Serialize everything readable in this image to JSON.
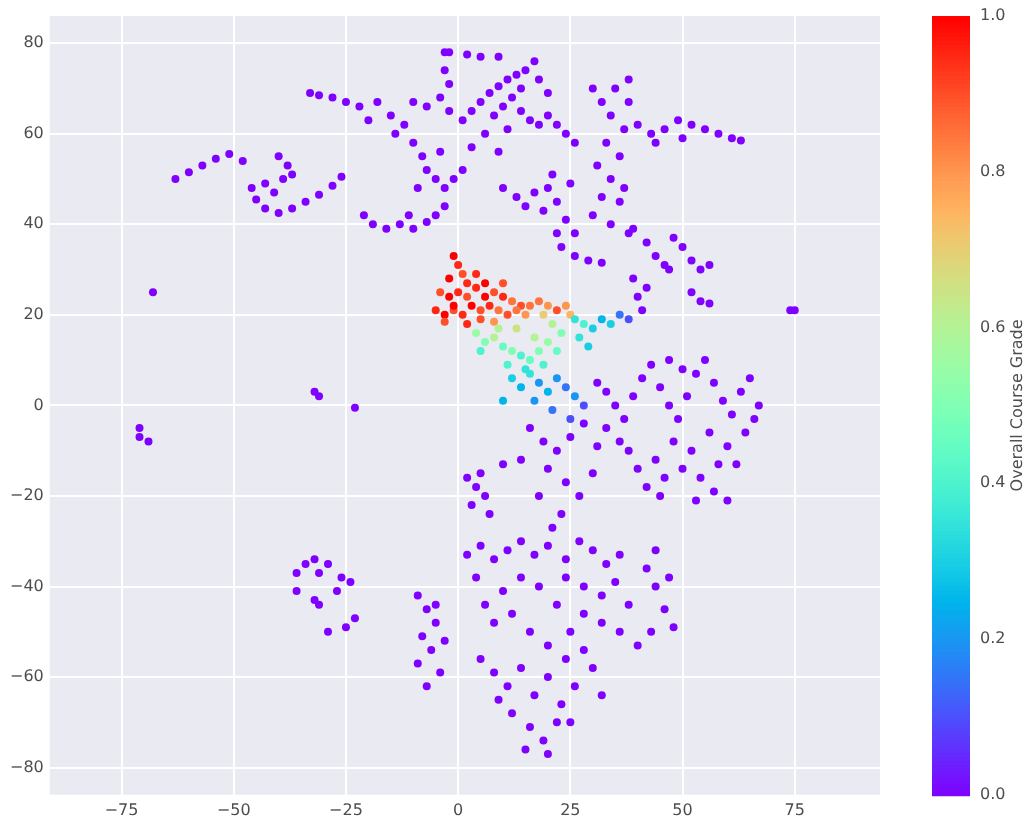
{
  "chart_data": {
    "type": "scatter",
    "clabel": "Overall Course Grade",
    "xlim": [
      -91,
      94
    ],
    "ylim": [
      -86,
      86
    ],
    "xticks": [
      {
        "value": -75,
        "label": "−75"
      },
      {
        "value": -50,
        "label": "−50"
      },
      {
        "value": -25,
        "label": "−25"
      },
      0,
      25,
      50,
      75
    ],
    "yticks": [
      {
        "value": -80,
        "label": "−80"
      },
      {
        "value": -60,
        "label": "−60"
      },
      {
        "value": -40,
        "label": "−40"
      },
      {
        "value": -20,
        "label": "−20"
      },
      0,
      20,
      40,
      60,
      80
    ],
    "clim": [
      0,
      1
    ],
    "cticks": [
      {
        "value": 0,
        "label": "0.0"
      },
      0.2,
      0.4,
      0.6,
      0.8,
      {
        "value": 1,
        "label": "1.0"
      }
    ],
    "grid": true,
    "marker": "circle",
    "x": [
      -63,
      -60,
      -57,
      -54,
      -51,
      -48,
      -40,
      -38,
      -37,
      -39,
      -46,
      -45,
      -43,
      -40,
      -37,
      -34,
      -31,
      -28,
      -26,
      -43,
      -41,
      -33,
      -31,
      -28,
      -25,
      -22,
      -20,
      -18,
      -15,
      -14,
      -12,
      -10,
      -7,
      -4,
      -2,
      -10,
      -8,
      -7,
      -5,
      -3,
      -1,
      1,
      -9,
      -4,
      -3,
      -3,
      -2,
      -21,
      -19,
      -16,
      -13,
      -10,
      -7,
      -5,
      -3,
      -11,
      -68,
      -32,
      -31,
      -23,
      -71,
      -71,
      -69,
      75,
      74,
      -36,
      -34,
      -32,
      -31,
      -29,
      -26,
      -24,
      -32,
      -31,
      -27,
      -25,
      -23,
      -29,
      -36,
      -2,
      2,
      5,
      9,
      1,
      3,
      5,
      7,
      9,
      11,
      13,
      15,
      17,
      18,
      8,
      10,
      12,
      14,
      16,
      18,
      20,
      22,
      24,
      26,
      11,
      14,
      20,
      6,
      9,
      3,
      10,
      13,
      15,
      17,
      19,
      20,
      22,
      24,
      26,
      22,
      21,
      25,
      30,
      32,
      34,
      35,
      38,
      38,
      37,
      33,
      36,
      31,
      34,
      32,
      36,
      30,
      34,
      38,
      37,
      40,
      43,
      46,
      49,
      52,
      55,
      58,
      61,
      63,
      50,
      44,
      39,
      42,
      44,
      46,
      48,
      50,
      52,
      54,
      56,
      47,
      23,
      26,
      29,
      32,
      39,
      40,
      41,
      42,
      52,
      54,
      56,
      31,
      33,
      35,
      37,
      39,
      41,
      43,
      45,
      47,
      49,
      51,
      53,
      55,
      57,
      59,
      61,
      63,
      65,
      67,
      64,
      60,
      56,
      52,
      48,
      44,
      40,
      42,
      46,
      50,
      54,
      57,
      60,
      53,
      62,
      58,
      66,
      36,
      33,
      38,
      45,
      50,
      47,
      16,
      19,
      22,
      25,
      28,
      31,
      20,
      24,
      27,
      23,
      18,
      21,
      30,
      14,
      2,
      4,
      6,
      3,
      5,
      7,
      10,
      2,
      5,
      8,
      11,
      14,
      17,
      20,
      24,
      27,
      30,
      33,
      36,
      24,
      28,
      32,
      35,
      38,
      42,
      44,
      46,
      48,
      43,
      40,
      36,
      32,
      28,
      25,
      22,
      18,
      14,
      10,
      6,
      4,
      8,
      12,
      16,
      20,
      24,
      28,
      44,
      47,
      -9,
      -7,
      -5,
      -8,
      -6,
      -9,
      -4,
      -7,
      -3,
      -5,
      5,
      8,
      11,
      14,
      17,
      20,
      23,
      26,
      30,
      32,
      12,
      16,
      19,
      22,
      25,
      9,
      15,
      20,
      -1,
      0,
      1,
      -2,
      2,
      -4,
      -2,
      0,
      2,
      4,
      6,
      8,
      10,
      12,
      14,
      -5,
      -3,
      -1,
      1,
      3,
      5,
      7,
      9,
      11,
      13,
      15,
      16,
      5,
      8,
      2,
      -3,
      6,
      4,
      10,
      -1,
      18,
      20,
      22,
      24,
      25,
      19,
      4,
      6,
      8,
      10,
      12,
      14,
      16,
      18,
      20,
      22,
      17,
      13,
      9,
      5,
      11,
      15,
      19,
      21,
      23,
      26,
      28,
      30,
      32,
      34,
      36,
      38,
      27,
      29,
      12,
      14,
      16,
      18,
      20,
      22,
      24,
      26,
      28,
      21,
      25,
      17,
      10
    ],
    "values": [
      50,
      51.5,
      53,
      54.5,
      55.5,
      54,
      55,
      53,
      51,
      50,
      48,
      45.5,
      43.5,
      42.5,
      43.5,
      45,
      46.5,
      48.5,
      50.5,
      49,
      47,
      69,
      68.5,
      68,
      67,
      66,
      63,
      67,
      64,
      60,
      62,
      67,
      66,
      68,
      65,
      58,
      55,
      52,
      50,
      48,
      50,
      52,
      48,
      56,
      78,
      74,
      71,
      42,
      40,
      39,
      40,
      39,
      40.5,
      42,
      44,
      42,
      25,
      3,
      2,
      -0.5,
      -5,
      -7,
      -8,
      21,
      21,
      -37,
      -35,
      -34,
      -37,
      -35,
      -38,
      -39,
      -43,
      -44,
      -41,
      -49,
      -47,
      -50,
      -41,
      78,
      77.5,
      77,
      77,
      63,
      65,
      67,
      69,
      70.5,
      72,
      73,
      74,
      76,
      72,
      64,
      66,
      68,
      65,
      63,
      62,
      64,
      62,
      60,
      58,
      61,
      70,
      69,
      60,
      56,
      57,
      48,
      46,
      44,
      47,
      43,
      48,
      45,
      41,
      38,
      38,
      51,
      49,
      70,
      67,
      64,
      70,
      72,
      67,
      61,
      58,
      55,
      53,
      50,
      46,
      45,
      42,
      40,
      38,
      48,
      62,
      60,
      61,
      63,
      62,
      61,
      60,
      59,
      58.5,
      59,
      58,
      39,
      36,
      33,
      31,
      37,
      35,
      32,
      30,
      31,
      30,
      35,
      33,
      32,
      31.5,
      28,
      24,
      21,
      26,
      25,
      23,
      22.5,
      5,
      3,
      0,
      -3,
      2,
      6,
      9,
      4,
      0,
      -3,
      2,
      7,
      10,
      5,
      1,
      -2,
      3,
      6,
      0,
      -6,
      -9,
      -6,
      -10,
      -8,
      -12,
      -14,
      -18,
      -16,
      -14,
      -16,
      -19,
      -21,
      -21,
      -13,
      -13,
      -3,
      -8,
      -5,
      -10,
      -20,
      8,
      10,
      -5,
      -8,
      -10,
      -7,
      -4,
      -9,
      -14,
      -17,
      -20,
      -24,
      -20,
      -27,
      -15,
      -12,
      -16,
      -18,
      -20,
      -22,
      -15,
      -24,
      -13,
      -33,
      -31,
      -34,
      -32,
      -30,
      -33,
      -31,
      -34,
      -30,
      -32,
      -35,
      -33,
      -38,
      -40,
      -42,
      -39,
      -44,
      -36,
      -40,
      -45,
      -49,
      -50,
      -53,
      -50,
      -48,
      -46,
      -50,
      -44,
      -40,
      -38,
      -41,
      -44,
      -38,
      -48,
      -46,
      -50,
      -53,
      -56,
      -54,
      -32,
      -38,
      -42,
      -45,
      -48,
      -51,
      -54,
      -57,
      -59,
      -62,
      -52,
      -44,
      -56,
      -59,
      -62,
      -58,
      -64,
      -60,
      -66,
      -62,
      -58,
      -64,
      -68,
      -71,
      -74,
      -70,
      -70,
      -65,
      -76,
      -77,
      33,
      31,
      29,
      28,
      27,
      25,
      24,
      25,
      24,
      26,
      27,
      25,
      24,
      23,
      22,
      21,
      20,
      21,
      20,
      22,
      21,
      22,
      21,
      20,
      21,
      20,
      22,
      19,
      18.5,
      18,
      18.5,
      24,
      29,
      27,
      22,
      23,
      22,
      21,
      22,
      20,
      20,
      16,
      14,
      15,
      13,
      12,
      11,
      10,
      12,
      14,
      12,
      15,
      17,
      17,
      12,
      9,
      8,
      9,
      18,
      16,
      19,
      18,
      17,
      19,
      18,
      20,
      19,
      15,
      13,
      6,
      4,
      7,
      5,
      3,
      6,
      4,
      2,
      0,
      -1,
      -3,
      1,
      1
    ],
    "cvalues": [
      0,
      0,
      0,
      0,
      0,
      0,
      0,
      0,
      0,
      0,
      0,
      0,
      0,
      0,
      0,
      0,
      0,
      0,
      0,
      0,
      0,
      0,
      0,
      0,
      0,
      0,
      0,
      0,
      0,
      0,
      0,
      0,
      0,
      0,
      0,
      0,
      0,
      0,
      0,
      0,
      0,
      0,
      0,
      0,
      0,
      0,
      0,
      0,
      0,
      0,
      0,
      0,
      0,
      0,
      0,
      0,
      0,
      0,
      0,
      0,
      0,
      0,
      0,
      0,
      0,
      0,
      0,
      0,
      0,
      0,
      0,
      0,
      0,
      0,
      0,
      0,
      0,
      0,
      0,
      0,
      0,
      0,
      0,
      0,
      0,
      0,
      0,
      0,
      0,
      0,
      0,
      0,
      0,
      0,
      0,
      0,
      0,
      0,
      0,
      0,
      0,
      0,
      0,
      0,
      0,
      0,
      0,
      0,
      0,
      0,
      0,
      0,
      0,
      0,
      0,
      0,
      0,
      0,
      0,
      0,
      0,
      0,
      0,
      0,
      0,
      0,
      0,
      0,
      0,
      0,
      0,
      0,
      0,
      0,
      0,
      0,
      0,
      0,
      0,
      0,
      0,
      0,
      0,
      0,
      0,
      0,
      0,
      0,
      0,
      0,
      0,
      0,
      0,
      0,
      0,
      0,
      0,
      0,
      0,
      0,
      0,
      0,
      0,
      0,
      0,
      0,
      0,
      0,
      0,
      0,
      0,
      0,
      0,
      0,
      0,
      0,
      0,
      0,
      0,
      0,
      0,
      0,
      0,
      0,
      0,
      0,
      0,
      0,
      0,
      0,
      0,
      0,
      0,
      0,
      0,
      0,
      0,
      0,
      0,
      0,
      0,
      0,
      0,
      0,
      0,
      0,
      0,
      0,
      0,
      0,
      0,
      0,
      0,
      0,
      0,
      0,
      0,
      0,
      0,
      0,
      0,
      0,
      0,
      0,
      0,
      0,
      0,
      0,
      0,
      0,
      0,
      0,
      0,
      0,
      0,
      0,
      0,
      0,
      0,
      0,
      0,
      0,
      0,
      0,
      0,
      0,
      0,
      0,
      0,
      0,
      0,
      0,
      0,
      0,
      0,
      0,
      0,
      0,
      0,
      0,
      0,
      0,
      0,
      0,
      0,
      0,
      0,
      0,
      0,
      0,
      0,
      0,
      0,
      0,
      0,
      0,
      0,
      0,
      0,
      0,
      0,
      0,
      0,
      0,
      0,
      0,
      0,
      0,
      0,
      0,
      0,
      0,
      0,
      0,
      0,
      0,
      0,
      0,
      0,
      0,
      0,
      0,
      1,
      0.95,
      0.9,
      1,
      0.95,
      0.9,
      1,
      0.95,
      0.9,
      0.95,
      1,
      0.9,
      0.95,
      0.85,
      0.9,
      0.95,
      1,
      0.9,
      0.95,
      1,
      0.9,
      0.95,
      0.85,
      0.9,
      0.85,
      0.8,
      0.85,
      0.9,
      0.8,
      0.95,
      0.9,
      1,
      0.95,
      0.9,
      1,
      0.85,
      0.8,
      0.9,
      0.8,
      0.75,
      0.7,
      0.55,
      0.5,
      0.6,
      0.45,
      0.5,
      0.4,
      0.45,
      0.5,
      0.55,
      0.45,
      0.6,
      0.65,
      0.6,
      0.4,
      0.4,
      0.35,
      0.4,
      0.6,
      0.5,
      0.35,
      0.4,
      0.3,
      0.25,
      0.3,
      0.15,
      0.1,
      0.35,
      0.3,
      0.3,
      0.25,
      0.35,
      0.2,
      0.25,
      0.2,
      0.15,
      0.2,
      0.1,
      0.15,
      0.1,
      0.2,
      0.25
    ]
  }
}
